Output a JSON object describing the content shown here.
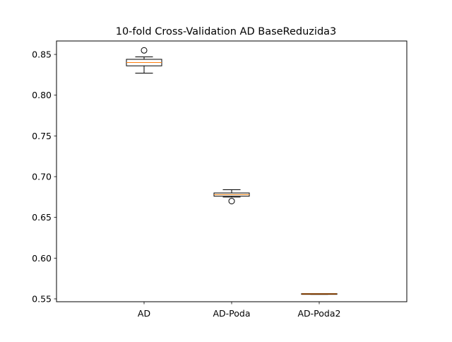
{
  "chart_data": {
    "type": "boxplot",
    "title": "10-fold Cross-Validation AD BaseReduzida3",
    "xlabel": "",
    "ylabel": "",
    "categories": [
      "AD",
      "AD-Poda",
      "AD-Poda2"
    ],
    "ylim": [
      0.5465,
      0.8665
    ],
    "yticks": [
      0.55,
      0.6,
      0.65,
      0.7,
      0.75,
      0.8,
      0.85
    ],
    "ytick_labels": [
      "0.55",
      "0.60",
      "0.65",
      "0.70",
      "0.75",
      "0.80",
      "0.85"
    ],
    "grid": false,
    "boxes": [
      {
        "label": "AD",
        "whisker_low": 0.827,
        "q1": 0.836,
        "median": 0.84,
        "q3": 0.844,
        "whisker_high": 0.847,
        "fliers": [
          0.855
        ]
      },
      {
        "label": "AD-Poda",
        "whisker_low": 0.675,
        "q1": 0.676,
        "median": 0.678,
        "q3": 0.68,
        "whisker_high": 0.684,
        "fliers": [
          0.67
        ]
      },
      {
        "label": "AD-Poda2",
        "whisker_low": 0.5555,
        "q1": 0.5555,
        "median": 0.556,
        "q3": 0.5565,
        "whisker_high": 0.5565,
        "fliers": []
      }
    ],
    "colors": {
      "box": "#000000",
      "median": "#ff7f0e",
      "flier": "#000000"
    }
  }
}
